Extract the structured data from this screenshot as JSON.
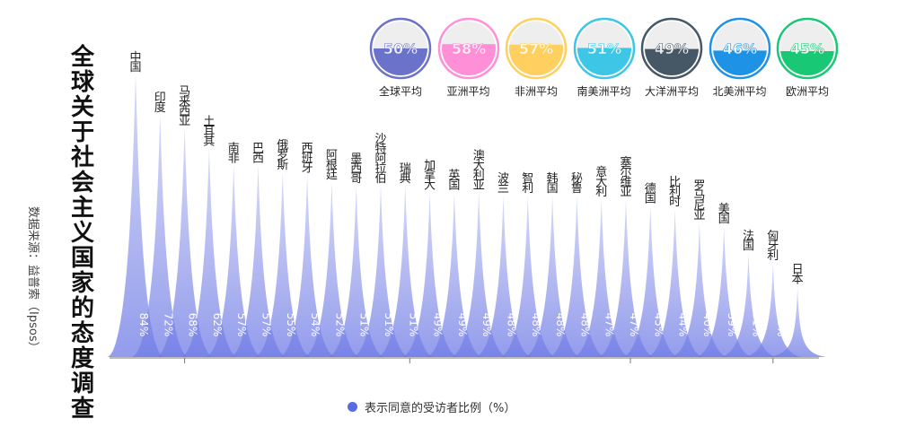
{
  "title": "全球关于社会主义国家的态度调查",
  "source": "数据来源：益普索（Ipsos）",
  "legend": "表示同意的受访者比例（%）",
  "chart_data": {
    "type": "area",
    "categories": [
      "中国",
      "印度",
      "马来西亚",
      "土耳其",
      "南非",
      "巴西",
      "俄罗斯",
      "西班牙",
      "阿根廷",
      "墨西哥",
      "沙特阿拉伯",
      "瑞典",
      "加拿大",
      "英国",
      "澳大利亚",
      "波兰",
      "智利",
      "韩国",
      "秘鲁",
      "意大利",
      "塞尔维亚",
      "德国",
      "比利时",
      "罗马尼亚",
      "美国",
      "法国",
      "匈牙利",
      "日本"
    ],
    "values": [
      84,
      72,
      68,
      62,
      57,
      57,
      55,
      54,
      52,
      51,
      51,
      51,
      49,
      49,
      49,
      48,
      48,
      48,
      48,
      47,
      47,
      45,
      44,
      40,
      39,
      31,
      28,
      21
    ],
    "value_labels": [
      "84%",
      "72%",
      "68%",
      "62%",
      "57%",
      "57%",
      "55%",
      "54%",
      "52%",
      "51%",
      "51%",
      "51%",
      "49%",
      "49%",
      "49%",
      "48%",
      "48%",
      "48%",
      "48%",
      "47%",
      "47%",
      "45%",
      "44%",
      "40%",
      "39%",
      "31%",
      "28%",
      "21%"
    ],
    "colors": {
      "peak": "#6f7be6",
      "peak_light": "#c7cdf6"
    }
  },
  "averages": [
    {
      "label": "全球平均",
      "value": 50,
      "text": "50%",
      "color": "#6b72c9"
    },
    {
      "label": "亚洲平均",
      "value": 58,
      "text": "58%",
      "color": "#ff8fd6"
    },
    {
      "label": "非洲平均",
      "value": 57,
      "text": "57%",
      "color": "#ffd060"
    },
    {
      "label": "南美洲平均",
      "value": 51,
      "text": "51%",
      "color": "#3ec6e6"
    },
    {
      "label": "大洋洲平均",
      "value": 49,
      "text": "49%",
      "color": "#465766"
    },
    {
      "label": "北美洲平均",
      "value": 46,
      "text": "46%",
      "color": "#1e93e6"
    },
    {
      "label": "欧洲平均",
      "value": 45,
      "text": "45%",
      "color": "#18c875"
    }
  ]
}
